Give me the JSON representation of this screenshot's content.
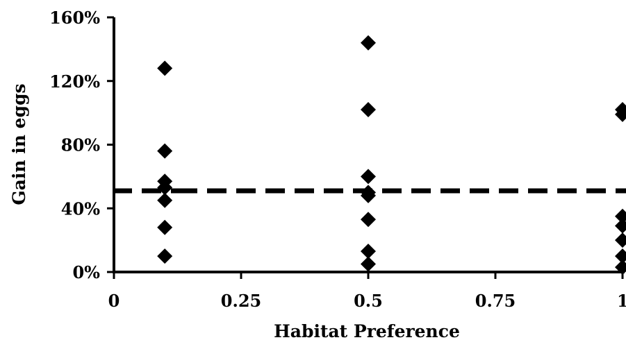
{
  "chart_data": {
    "type": "scatter",
    "xlabel": "Habitat Preference",
    "ylabel": "Gain in eggs",
    "xlim": [
      0,
      1
    ],
    "ylim": [
      0,
      1.6
    ],
    "x_ticks": [
      0,
      0.25,
      0.5,
      0.75,
      1
    ],
    "x_tick_labels": [
      "0",
      "0.25",
      "0.5",
      "0.75",
      "1"
    ],
    "y_ticks": [
      0,
      0.4,
      0.8,
      1.2,
      1.6
    ],
    "y_tick_labels": [
      "0%",
      "40%",
      "80%",
      "120%",
      "160%"
    ],
    "grid": false,
    "legend": "none",
    "marker": "diamond",
    "marker_color": "#000000",
    "series": [
      {
        "points": [
          {
            "x": 0.1,
            "y": 1.28
          },
          {
            "x": 0.1,
            "y": 0.76
          },
          {
            "x": 0.1,
            "y": 0.57
          },
          {
            "x": 0.1,
            "y": 0.53
          },
          {
            "x": 0.1,
            "y": 0.45
          },
          {
            "x": 0.1,
            "y": 0.28
          },
          {
            "x": 0.1,
            "y": 0.1
          },
          {
            "x": 0.5,
            "y": 1.44
          },
          {
            "x": 0.5,
            "y": 1.02
          },
          {
            "x": 0.5,
            "y": 0.6
          },
          {
            "x": 0.5,
            "y": 0.5
          },
          {
            "x": 0.5,
            "y": 0.48
          },
          {
            "x": 0.5,
            "y": 0.33
          },
          {
            "x": 0.5,
            "y": 0.13
          },
          {
            "x": 0.5,
            "y": 0.05
          },
          {
            "x": 1.0,
            "y": 1.02
          },
          {
            "x": 1.0,
            "y": 0.99
          },
          {
            "x": 1.0,
            "y": 0.35
          },
          {
            "x": 1.0,
            "y": 0.29
          },
          {
            "x": 1.0,
            "y": 0.2
          },
          {
            "x": 1.0,
            "y": 0.1
          },
          {
            "x": 1.0,
            "y": 0.03
          }
        ]
      }
    ],
    "reference_line": {
      "orientation": "horizontal",
      "y": 0.51,
      "style": "dashed",
      "color": "#000000"
    }
  }
}
